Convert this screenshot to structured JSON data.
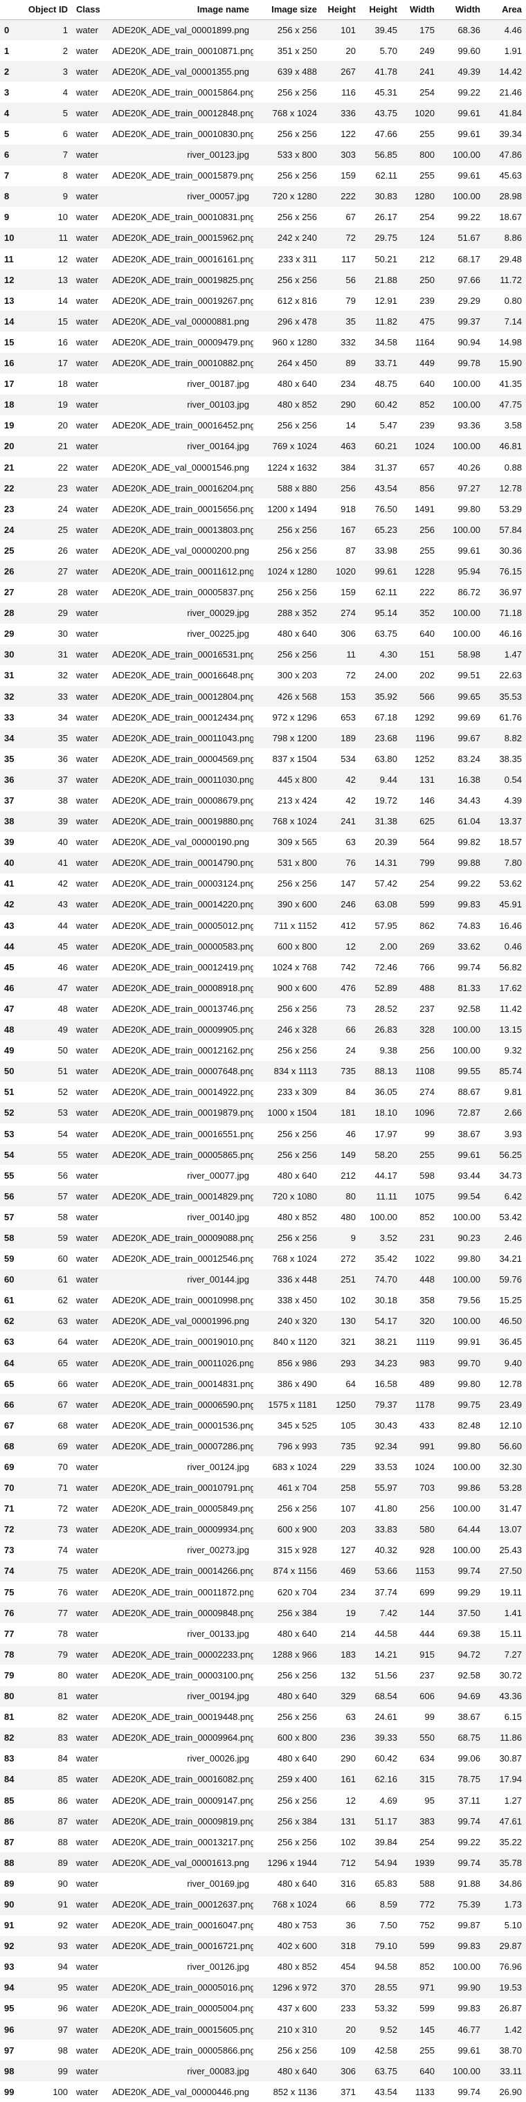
{
  "columns": [
    "",
    "Object ID",
    "Class",
    "Image name",
    "Image size",
    "Height",
    "Height",
    "Width",
    "Width",
    "Area"
  ],
  "rows": [
    [
      "0",
      "1",
      "water",
      "ADE20K_ADE_val_00001899.png",
      "256 x 256",
      "101",
      "39.45",
      "175",
      "68.36",
      "4.46"
    ],
    [
      "1",
      "2",
      "water",
      "ADE20K_ADE_train_00010871.png",
      "351 x 250",
      "20",
      "5.70",
      "249",
      "99.60",
      "1.91"
    ],
    [
      "2",
      "3",
      "water",
      "ADE20K_ADE_val_00001355.png",
      "639 x 488",
      "267",
      "41.78",
      "241",
      "49.39",
      "14.42"
    ],
    [
      "3",
      "4",
      "water",
      "ADE20K_ADE_train_00015864.png",
      "256 x 256",
      "116",
      "45.31",
      "254",
      "99.22",
      "21.46"
    ],
    [
      "4",
      "5",
      "water",
      "ADE20K_ADE_train_00012848.png",
      "768 x 1024",
      "336",
      "43.75",
      "1020",
      "99.61",
      "41.84"
    ],
    [
      "5",
      "6",
      "water",
      "ADE20K_ADE_train_00010830.png",
      "256 x 256",
      "122",
      "47.66",
      "255",
      "99.61",
      "39.34"
    ],
    [
      "6",
      "7",
      "water",
      "river_00123.jpg",
      "533 x 800",
      "303",
      "56.85",
      "800",
      "100.00",
      "47.86"
    ],
    [
      "7",
      "8",
      "water",
      "ADE20K_ADE_train_00015879.png",
      "256 x 256",
      "159",
      "62.11",
      "255",
      "99.61",
      "45.63"
    ],
    [
      "8",
      "9",
      "water",
      "river_00057.jpg",
      "720 x 1280",
      "222",
      "30.83",
      "1280",
      "100.00",
      "28.98"
    ],
    [
      "9",
      "10",
      "water",
      "ADE20K_ADE_train_00010831.png",
      "256 x 256",
      "67",
      "26.17",
      "254",
      "99.22",
      "18.67"
    ],
    [
      "10",
      "11",
      "water",
      "ADE20K_ADE_train_00015962.png",
      "242 x 240",
      "72",
      "29.75",
      "124",
      "51.67",
      "8.86"
    ],
    [
      "11",
      "12",
      "water",
      "ADE20K_ADE_train_00016161.png",
      "233 x 311",
      "117",
      "50.21",
      "212",
      "68.17",
      "29.48"
    ],
    [
      "12",
      "13",
      "water",
      "ADE20K_ADE_train_00019825.png",
      "256 x 256",
      "56",
      "21.88",
      "250",
      "97.66",
      "11.72"
    ],
    [
      "13",
      "14",
      "water",
      "ADE20K_ADE_train_00019267.png",
      "612 x 816",
      "79",
      "12.91",
      "239",
      "29.29",
      "0.80"
    ],
    [
      "14",
      "15",
      "water",
      "ADE20K_ADE_val_00000881.png",
      "296 x 478",
      "35",
      "11.82",
      "475",
      "99.37",
      "7.14"
    ],
    [
      "15",
      "16",
      "water",
      "ADE20K_ADE_train_00009479.png",
      "960 x 1280",
      "332",
      "34.58",
      "1164",
      "90.94",
      "14.98"
    ],
    [
      "16",
      "17",
      "water",
      "ADE20K_ADE_train_00010882.png",
      "264 x 450",
      "89",
      "33.71",
      "449",
      "99.78",
      "15.90"
    ],
    [
      "17",
      "18",
      "water",
      "river_00187.jpg",
      "480 x 640",
      "234",
      "48.75",
      "640",
      "100.00",
      "41.35"
    ],
    [
      "18",
      "19",
      "water",
      "river_00103.jpg",
      "480 x 852",
      "290",
      "60.42",
      "852",
      "100.00",
      "47.75"
    ],
    [
      "19",
      "20",
      "water",
      "ADE20K_ADE_train_00016452.png",
      "256 x 256",
      "14",
      "5.47",
      "239",
      "93.36",
      "3.58"
    ],
    [
      "20",
      "21",
      "water",
      "river_00164.jpg",
      "769 x 1024",
      "463",
      "60.21",
      "1024",
      "100.00",
      "46.81"
    ],
    [
      "21",
      "22",
      "water",
      "ADE20K_ADE_val_00001546.png",
      "1224 x 1632",
      "384",
      "31.37",
      "657",
      "40.26",
      "0.88"
    ],
    [
      "22",
      "23",
      "water",
      "ADE20K_ADE_train_00016204.png",
      "588 x 880",
      "256",
      "43.54",
      "856",
      "97.27",
      "12.78"
    ],
    [
      "23",
      "24",
      "water",
      "ADE20K_ADE_train_00015656.png",
      "1200 x 1494",
      "918",
      "76.50",
      "1491",
      "99.80",
      "53.29"
    ],
    [
      "24",
      "25",
      "water",
      "ADE20K_ADE_train_00013803.png",
      "256 x 256",
      "167",
      "65.23",
      "256",
      "100.00",
      "57.84"
    ],
    [
      "25",
      "26",
      "water",
      "ADE20K_ADE_val_00000200.png",
      "256 x 256",
      "87",
      "33.98",
      "255",
      "99.61",
      "30.36"
    ],
    [
      "26",
      "27",
      "water",
      "ADE20K_ADE_train_00011612.png",
      "1024 x 1280",
      "1020",
      "99.61",
      "1228",
      "95.94",
      "76.15"
    ],
    [
      "27",
      "28",
      "water",
      "ADE20K_ADE_train_00005837.png",
      "256 x 256",
      "159",
      "62.11",
      "222",
      "86.72",
      "36.97"
    ],
    [
      "28",
      "29",
      "water",
      "river_00029.jpg",
      "288 x 352",
      "274",
      "95.14",
      "352",
      "100.00",
      "71.18"
    ],
    [
      "29",
      "30",
      "water",
      "river_00225.jpg",
      "480 x 640",
      "306",
      "63.75",
      "640",
      "100.00",
      "46.16"
    ],
    [
      "30",
      "31",
      "water",
      "ADE20K_ADE_train_00016531.png",
      "256 x 256",
      "11",
      "4.30",
      "151",
      "58.98",
      "1.47"
    ],
    [
      "31",
      "32",
      "water",
      "ADE20K_ADE_train_00016648.png",
      "300 x 203",
      "72",
      "24.00",
      "202",
      "99.51",
      "22.63"
    ],
    [
      "32",
      "33",
      "water",
      "ADE20K_ADE_train_00012804.png",
      "426 x 568",
      "153",
      "35.92",
      "566",
      "99.65",
      "35.53"
    ],
    [
      "33",
      "34",
      "water",
      "ADE20K_ADE_train_00012434.png",
      "972 x 1296",
      "653",
      "67.18",
      "1292",
      "99.69",
      "61.76"
    ],
    [
      "34",
      "35",
      "water",
      "ADE20K_ADE_train_00011043.png",
      "798 x 1200",
      "189",
      "23.68",
      "1196",
      "99.67",
      "8.82"
    ],
    [
      "35",
      "36",
      "water",
      "ADE20K_ADE_train_00004569.png",
      "837 x 1504",
      "534",
      "63.80",
      "1252",
      "83.24",
      "38.35"
    ],
    [
      "36",
      "37",
      "water",
      "ADE20K_ADE_train_00011030.png",
      "445 x 800",
      "42",
      "9.44",
      "131",
      "16.38",
      "0.54"
    ],
    [
      "37",
      "38",
      "water",
      "ADE20K_ADE_train_00008679.png",
      "213 x 424",
      "42",
      "19.72",
      "146",
      "34.43",
      "4.39"
    ],
    [
      "38",
      "39",
      "water",
      "ADE20K_ADE_train_00019880.png",
      "768 x 1024",
      "241",
      "31.38",
      "625",
      "61.04",
      "13.37"
    ],
    [
      "39",
      "40",
      "water",
      "ADE20K_ADE_val_00000190.png",
      "309 x 565",
      "63",
      "20.39",
      "564",
      "99.82",
      "18.57"
    ],
    [
      "40",
      "41",
      "water",
      "ADE20K_ADE_train_00014790.png",
      "531 x 800",
      "76",
      "14.31",
      "799",
      "99.88",
      "7.80"
    ],
    [
      "41",
      "42",
      "water",
      "ADE20K_ADE_train_00003124.png",
      "256 x 256",
      "147",
      "57.42",
      "254",
      "99.22",
      "53.62"
    ],
    [
      "42",
      "43",
      "water",
      "ADE20K_ADE_train_00014220.png",
      "390 x 600",
      "246",
      "63.08",
      "599",
      "99.83",
      "45.91"
    ],
    [
      "43",
      "44",
      "water",
      "ADE20K_ADE_train_00005012.png",
      "711 x 1152",
      "412",
      "57.95",
      "862",
      "74.83",
      "16.46"
    ],
    [
      "44",
      "45",
      "water",
      "ADE20K_ADE_train_00000583.png",
      "600 x 800",
      "12",
      "2.00",
      "269",
      "33.62",
      "0.46"
    ],
    [
      "45",
      "46",
      "water",
      "ADE20K_ADE_train_00012419.png",
      "1024 x 768",
      "742",
      "72.46",
      "766",
      "99.74",
      "56.82"
    ],
    [
      "46",
      "47",
      "water",
      "ADE20K_ADE_train_00008918.png",
      "900 x 600",
      "476",
      "52.89",
      "488",
      "81.33",
      "17.62"
    ],
    [
      "47",
      "48",
      "water",
      "ADE20K_ADE_train_00013746.png",
      "256 x 256",
      "73",
      "28.52",
      "237",
      "92.58",
      "11.42"
    ],
    [
      "48",
      "49",
      "water",
      "ADE20K_ADE_train_00009905.png",
      "246 x 328",
      "66",
      "26.83",
      "328",
      "100.00",
      "13.15"
    ],
    [
      "49",
      "50",
      "water",
      "ADE20K_ADE_train_00012162.png",
      "256 x 256",
      "24",
      "9.38",
      "256",
      "100.00",
      "9.32"
    ],
    [
      "50",
      "51",
      "water",
      "ADE20K_ADE_train_00007648.png",
      "834 x 1113",
      "735",
      "88.13",
      "1108",
      "99.55",
      "85.74"
    ],
    [
      "51",
      "52",
      "water",
      "ADE20K_ADE_train_00014922.png",
      "233 x 309",
      "84",
      "36.05",
      "274",
      "88.67",
      "9.81"
    ],
    [
      "52",
      "53",
      "water",
      "ADE20K_ADE_train_00019879.png",
      "1000 x 1504",
      "181",
      "18.10",
      "1096",
      "72.87",
      "2.66"
    ],
    [
      "53",
      "54",
      "water",
      "ADE20K_ADE_train_00016551.png",
      "256 x 256",
      "46",
      "17.97",
      "99",
      "38.67",
      "3.93"
    ],
    [
      "54",
      "55",
      "water",
      "ADE20K_ADE_train_00005865.png",
      "256 x 256",
      "149",
      "58.20",
      "255",
      "99.61",
      "56.25"
    ],
    [
      "55",
      "56",
      "water",
      "river_00077.jpg",
      "480 x 640",
      "212",
      "44.17",
      "598",
      "93.44",
      "34.73"
    ],
    [
      "56",
      "57",
      "water",
      "ADE20K_ADE_train_00014829.png",
      "720 x 1080",
      "80",
      "11.11",
      "1075",
      "99.54",
      "6.42"
    ],
    [
      "57",
      "58",
      "water",
      "river_00140.jpg",
      "480 x 852",
      "480",
      "100.00",
      "852",
      "100.00",
      "53.42"
    ],
    [
      "58",
      "59",
      "water",
      "ADE20K_ADE_train_00009088.png",
      "256 x 256",
      "9",
      "3.52",
      "231",
      "90.23",
      "2.46"
    ],
    [
      "59",
      "60",
      "water",
      "ADE20K_ADE_train_00012546.png",
      "768 x 1024",
      "272",
      "35.42",
      "1022",
      "99.80",
      "34.21"
    ],
    [
      "60",
      "61",
      "water",
      "river_00144.jpg",
      "336 x 448",
      "251",
      "74.70",
      "448",
      "100.00",
      "59.76"
    ],
    [
      "61",
      "62",
      "water",
      "ADE20K_ADE_train_00010998.png",
      "338 x 450",
      "102",
      "30.18",
      "358",
      "79.56",
      "15.25"
    ],
    [
      "62",
      "63",
      "water",
      "ADE20K_ADE_val_00001996.png",
      "240 x 320",
      "130",
      "54.17",
      "320",
      "100.00",
      "46.50"
    ],
    [
      "63",
      "64",
      "water",
      "ADE20K_ADE_train_00019010.png",
      "840 x 1120",
      "321",
      "38.21",
      "1119",
      "99.91",
      "36.45"
    ],
    [
      "64",
      "65",
      "water",
      "ADE20K_ADE_train_00011026.png",
      "856 x 986",
      "293",
      "34.23",
      "983",
      "99.70",
      "9.40"
    ],
    [
      "65",
      "66",
      "water",
      "ADE20K_ADE_train_00014831.png",
      "386 x 490",
      "64",
      "16.58",
      "489",
      "99.80",
      "12.78"
    ],
    [
      "66",
      "67",
      "water",
      "ADE20K_ADE_train_00006590.png",
      "1575 x 1181",
      "1250",
      "79.37",
      "1178",
      "99.75",
      "23.49"
    ],
    [
      "67",
      "68",
      "water",
      "ADE20K_ADE_train_00001536.png",
      "345 x 525",
      "105",
      "30.43",
      "433",
      "82.48",
      "12.10"
    ],
    [
      "68",
      "69",
      "water",
      "ADE20K_ADE_train_00007286.png",
      "796 x 993",
      "735",
      "92.34",
      "991",
      "99.80",
      "56.60"
    ],
    [
      "69",
      "70",
      "water",
      "river_00124.jpg",
      "683 x 1024",
      "229",
      "33.53",
      "1024",
      "100.00",
      "32.30"
    ],
    [
      "70",
      "71",
      "water",
      "ADE20K_ADE_train_00010791.png",
      "461 x 704",
      "258",
      "55.97",
      "703",
      "99.86",
      "53.28"
    ],
    [
      "71",
      "72",
      "water",
      "ADE20K_ADE_train_00005849.png",
      "256 x 256",
      "107",
      "41.80",
      "256",
      "100.00",
      "31.47"
    ],
    [
      "72",
      "73",
      "water",
      "ADE20K_ADE_train_00009934.png",
      "600 x 900",
      "203",
      "33.83",
      "580",
      "64.44",
      "13.07"
    ],
    [
      "73",
      "74",
      "water",
      "river_00273.jpg",
      "315 x 928",
      "127",
      "40.32",
      "928",
      "100.00",
      "25.43"
    ],
    [
      "74",
      "75",
      "water",
      "ADE20K_ADE_train_00014266.png",
      "874 x 1156",
      "469",
      "53.66",
      "1153",
      "99.74",
      "27.50"
    ],
    [
      "75",
      "76",
      "water",
      "ADE20K_ADE_train_00011872.png",
      "620 x 704",
      "234",
      "37.74",
      "699",
      "99.29",
      "19.11"
    ],
    [
      "76",
      "77",
      "water",
      "ADE20K_ADE_train_00009848.png",
      "256 x 384",
      "19",
      "7.42",
      "144",
      "37.50",
      "1.41"
    ],
    [
      "77",
      "78",
      "water",
      "river_00133.jpg",
      "480 x 640",
      "214",
      "44.58",
      "444",
      "69.38",
      "15.11"
    ],
    [
      "78",
      "79",
      "water",
      "ADE20K_ADE_train_00002233.png",
      "1288 x 966",
      "183",
      "14.21",
      "915",
      "94.72",
      "7.27"
    ],
    [
      "79",
      "80",
      "water",
      "ADE20K_ADE_train_00003100.png",
      "256 x 256",
      "132",
      "51.56",
      "237",
      "92.58",
      "30.72"
    ],
    [
      "80",
      "81",
      "water",
      "river_00194.jpg",
      "480 x 640",
      "329",
      "68.54",
      "606",
      "94.69",
      "43.36"
    ],
    [
      "81",
      "82",
      "water",
      "ADE20K_ADE_train_00019448.png",
      "256 x 256",
      "63",
      "24.61",
      "99",
      "38.67",
      "6.15"
    ],
    [
      "82",
      "83",
      "water",
      "ADE20K_ADE_train_00009964.png",
      "600 x 800",
      "236",
      "39.33",
      "550",
      "68.75",
      "11.86"
    ],
    [
      "83",
      "84",
      "water",
      "river_00026.jpg",
      "480 x 640",
      "290",
      "60.42",
      "634",
      "99.06",
      "30.87"
    ],
    [
      "84",
      "85",
      "water",
      "ADE20K_ADE_train_00016082.png",
      "259 x 400",
      "161",
      "62.16",
      "315",
      "78.75",
      "17.94"
    ],
    [
      "85",
      "86",
      "water",
      "ADE20K_ADE_train_00009147.png",
      "256 x 256",
      "12",
      "4.69",
      "95",
      "37.11",
      "1.27"
    ],
    [
      "86",
      "87",
      "water",
      "ADE20K_ADE_train_00009819.png",
      "256 x 384",
      "131",
      "51.17",
      "383",
      "99.74",
      "47.61"
    ],
    [
      "87",
      "88",
      "water",
      "ADE20K_ADE_train_00013217.png",
      "256 x 256",
      "102",
      "39.84",
      "254",
      "99.22",
      "35.22"
    ],
    [
      "88",
      "89",
      "water",
      "ADE20K_ADE_val_00001613.png",
      "1296 x 1944",
      "712",
      "54.94",
      "1939",
      "99.74",
      "35.78"
    ],
    [
      "89",
      "90",
      "water",
      "river_00169.jpg",
      "480 x 640",
      "316",
      "65.83",
      "588",
      "91.88",
      "34.86"
    ],
    [
      "90",
      "91",
      "water",
      "ADE20K_ADE_train_00012637.png",
      "768 x 1024",
      "66",
      "8.59",
      "772",
      "75.39",
      "1.73"
    ],
    [
      "91",
      "92",
      "water",
      "ADE20K_ADE_train_00016047.png",
      "480 x 753",
      "36",
      "7.50",
      "752",
      "99.87",
      "5.10"
    ],
    [
      "92",
      "93",
      "water",
      "ADE20K_ADE_train_00016721.png",
      "402 x 600",
      "318",
      "79.10",
      "599",
      "99.83",
      "29.87"
    ],
    [
      "93",
      "94",
      "water",
      "river_00126.jpg",
      "480 x 852",
      "454",
      "94.58",
      "852",
      "100.00",
      "76.96"
    ],
    [
      "94",
      "95",
      "water",
      "ADE20K_ADE_train_00005016.png",
      "1296 x 972",
      "370",
      "28.55",
      "971",
      "99.90",
      "19.53"
    ],
    [
      "95",
      "96",
      "water",
      "ADE20K_ADE_train_00005004.png",
      "437 x 600",
      "233",
      "53.32",
      "599",
      "99.83",
      "26.87"
    ],
    [
      "96",
      "97",
      "water",
      "ADE20K_ADE_train_00015605.png",
      "210 x 310",
      "20",
      "9.52",
      "145",
      "46.77",
      "1.42"
    ],
    [
      "97",
      "98",
      "water",
      "ADE20K_ADE_train_00005866.png",
      "256 x 256",
      "109",
      "42.58",
      "255",
      "99.61",
      "38.70"
    ],
    [
      "98",
      "99",
      "water",
      "river_00083.jpg",
      "480 x 640",
      "306",
      "63.75",
      "640",
      "100.00",
      "33.11"
    ],
    [
      "99",
      "100",
      "water",
      "ADE20K_ADE_val_00000446.png",
      "852 x 1136",
      "371",
      "43.54",
      "1133",
      "99.74",
      "26.90"
    ]
  ]
}
